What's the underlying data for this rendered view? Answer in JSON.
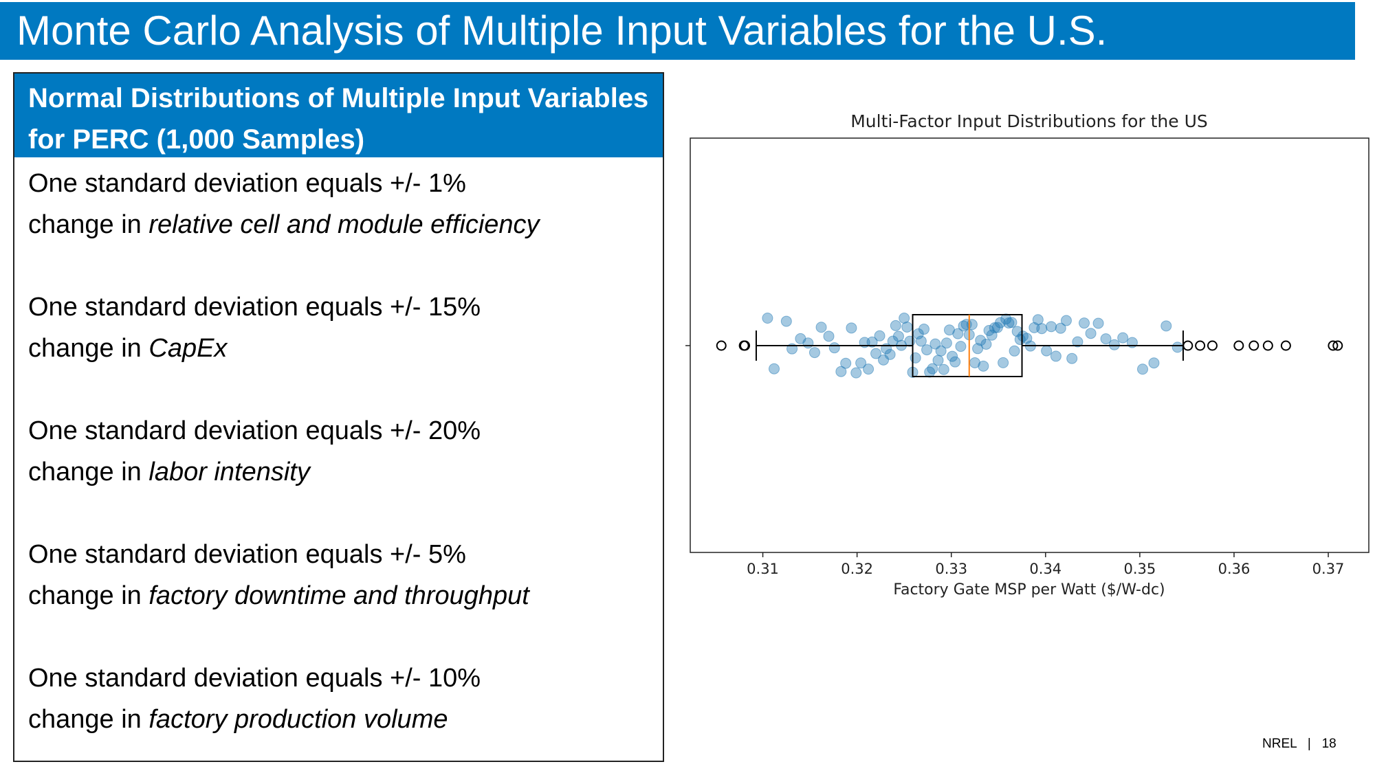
{
  "header": {
    "title": "Monte Carlo Analysis of Multiple Input Variables for the U.S."
  },
  "panel": {
    "title": "Normal Distributions of Multiple Input Variables for PERC (1,000 Samples)",
    "items": [
      {
        "line1": "One standard deviation equals +/- 1%",
        "prefix": "change in",
        "emphasis": "relative cell and module efficiency"
      },
      {
        "line1": "One standard deviation equals +/- 15%",
        "prefix": "change in",
        "emphasis": "CapEx"
      },
      {
        "line1": "One standard deviation equals +/- 20%",
        "prefix": "change in",
        "emphasis": "labor intensity"
      },
      {
        "line1": "One standard deviation equals +/- 5%",
        "prefix": "change in",
        "emphasis": "factory downtime and throughput"
      },
      {
        "line1": "One standard deviation equals +/- 10%",
        "prefix": "change in",
        "emphasis": "factory production volume"
      }
    ]
  },
  "chart_data": {
    "type": "boxplot",
    "title": "Multi-Factor Input Distributions for the US",
    "xlabel": "Factory Gate MSP per Watt ($/W-dc)",
    "xlim": [
      0.3023,
      0.3743
    ],
    "xticks": [
      0.31,
      0.32,
      0.33,
      0.34,
      0.35,
      0.36,
      0.37
    ],
    "whislo": 0.3093,
    "q1": 0.3259,
    "med": 0.3319,
    "q3": 0.3375,
    "whishi": 0.3546,
    "fliers": [
      0.3056,
      0.308,
      0.3081,
      0.3551,
      0.3564,
      0.3577,
      0.3605,
      0.3621,
      0.3636,
      0.3655,
      0.3705,
      0.371
    ],
    "samples": [
      0.3105,
      0.3112,
      0.3125,
      0.3131,
      0.314,
      0.3148,
      0.3155,
      0.3162,
      0.317,
      0.3176,
      0.3183,
      0.3188,
      0.3194,
      0.3199,
      0.3204,
      0.3208,
      0.3212,
      0.3216,
      0.322,
      0.3224,
      0.3228,
      0.3231,
      0.3235,
      0.3238,
      0.3241,
      0.3244,
      0.3247,
      0.325,
      0.3253,
      0.3256,
      0.3259,
      0.3262,
      0.3265,
      0.3268,
      0.3271,
      0.3274,
      0.3277,
      0.328,
      0.3283,
      0.3286,
      0.3289,
      0.3292,
      0.3295,
      0.3298,
      0.3301,
      0.3304,
      0.3307,
      0.331,
      0.3313,
      0.3316,
      0.3319,
      0.3322,
      0.3325,
      0.3328,
      0.3331,
      0.3334,
      0.3337,
      0.334,
      0.3343,
      0.3346,
      0.3349,
      0.3352,
      0.3355,
      0.3358,
      0.3361,
      0.3364,
      0.3367,
      0.337,
      0.3373,
      0.3376,
      0.338,
      0.3384,
      0.3388,
      0.3392,
      0.3396,
      0.3401,
      0.3406,
      0.3411,
      0.3416,
      0.3422,
      0.3428,
      0.3434,
      0.3441,
      0.3448,
      0.3456,
      0.3464,
      0.3473,
      0.3482,
      0.3492,
      0.3503,
      0.3515,
      0.3528,
      0.354
    ],
    "sample_color": "#1f77b4",
    "median_color": "#ff7f0e"
  },
  "footer": {
    "org": "NREL",
    "page": "18"
  }
}
